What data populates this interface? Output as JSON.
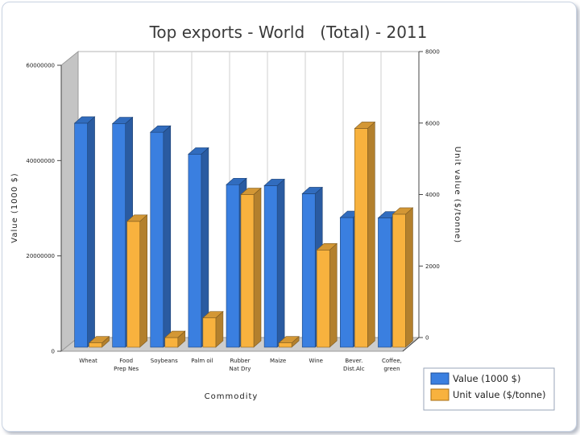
{
  "chart_data": {
    "type": "bar",
    "title": "Top exports - World   (Total) - 2011",
    "xlabel": "Commodity",
    "ylabel": "Value (1000 $)",
    "y2label": "Unit value ($/tonne)",
    "categories": [
      [
        "Wheat"
      ],
      [
        "Food",
        "Prep Nes"
      ],
      [
        "Soybeans"
      ],
      [
        "Palm oil"
      ],
      [
        "Rubber",
        "Nat Dry"
      ],
      [
        "Maize"
      ],
      [
        "Wine"
      ],
      [
        "Bever.",
        "Dist.Alc"
      ],
      [
        "Coffee,",
        "green"
      ]
    ],
    "series": [
      {
        "name": "Value (1000 $)",
        "axis": "left",
        "color": "#3a7fe0",
        "values": [
          47000000,
          46900000,
          45100000,
          40500000,
          34100000,
          33900000,
          32200000,
          27200000,
          27100000
        ]
      },
      {
        "name": "Unit value ($/tonne)",
        "axis": "right",
        "color": "#f8b23e",
        "values": [
          300,
          3700,
          450,
          1000,
          4450,
          300,
          2900,
          6300,
          3900
        ]
      }
    ],
    "ylim": [
      0,
      60000000
    ],
    "yticks": [
      "0",
      "20000000",
      "40000000",
      "60000000"
    ],
    "y2lim": [
      0,
      8000
    ],
    "y2ticks": [
      "0",
      "2000",
      "4000",
      "6000",
      "8000"
    ],
    "grid": true,
    "legend": "bottom-right"
  }
}
